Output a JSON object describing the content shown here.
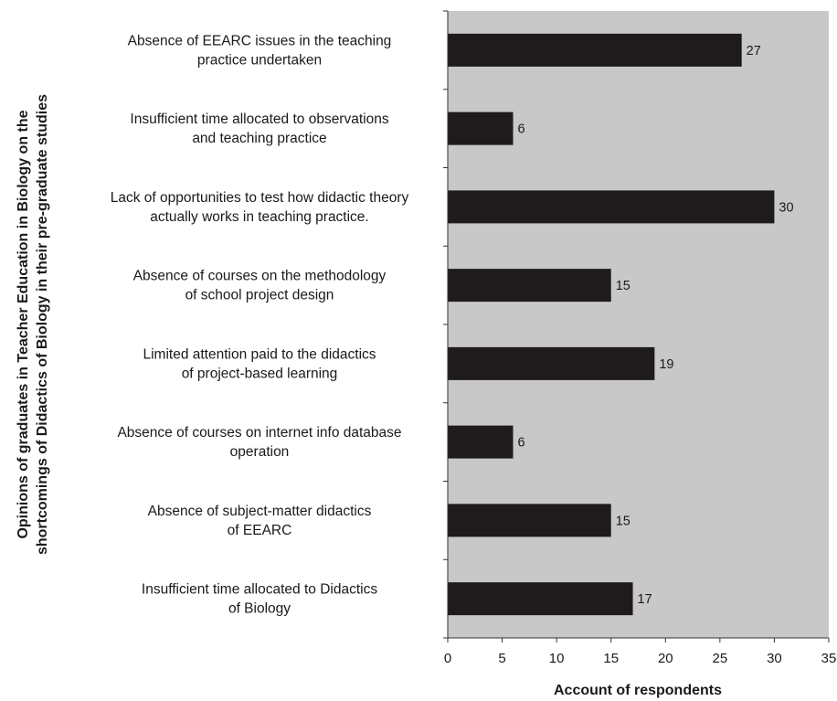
{
  "chart_data": {
    "type": "bar",
    "orientation": "horizontal",
    "categories": [
      [
        "Absence of EEARC issues in the teaching",
        "practice undertaken"
      ],
      [
        "Insufficient time allocated to observations",
        "and teaching practice"
      ],
      [
        "Lack of opportunities to test how didactic theory",
        "actually works in teaching practice."
      ],
      [
        "Absence of courses on the methodology",
        "of school project design"
      ],
      [
        "Limited attention paid to the didactics",
        "of project-based learning"
      ],
      [
        "Absence of courses on internet info database",
        "operation"
      ],
      [
        "Absence of subject-matter didactics",
        "of EEARC"
      ],
      [
        "Insufficient time allocated to Didactics",
        "of Biology"
      ]
    ],
    "values": [
      27,
      6,
      30,
      15,
      19,
      6,
      15,
      17
    ],
    "xlabel": "Account of respondents",
    "ylabel": [
      "Opinions of graduates in Teacher Education in Biology on the",
      "shortcomings of Didactics of Biology in their pre-graduate studies"
    ],
    "xlim": [
      0,
      35
    ],
    "xticks": [
      0,
      5,
      10,
      15,
      20,
      25,
      30,
      35
    ],
    "grid": false,
    "legend": "none",
    "colors": {
      "bar": "#1f1a1b",
      "plot_background": "#c8c8c9"
    }
  }
}
